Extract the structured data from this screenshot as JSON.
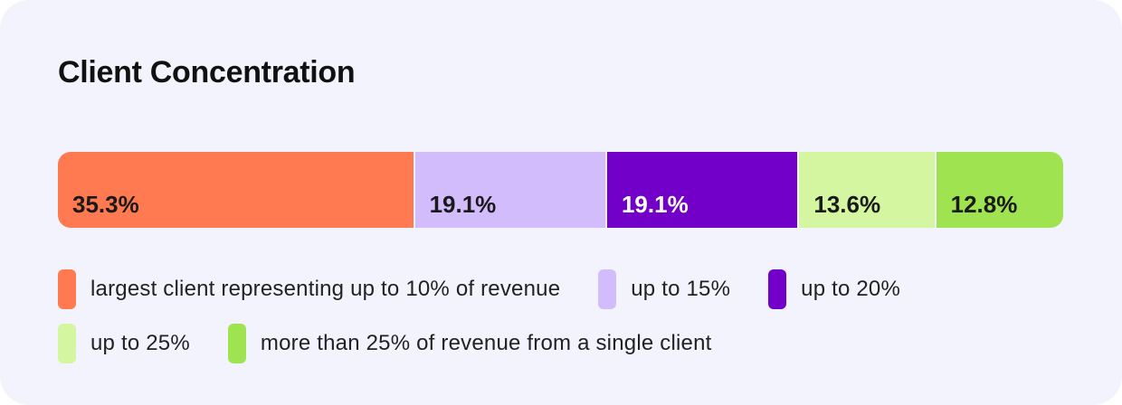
{
  "chart_data": {
    "type": "bar",
    "orientation": "horizontal-stacked-100",
    "title": "Client Concentration",
    "xlabel": "",
    "ylabel": "",
    "categories": [
      "largest client representing up to 10% of revenue",
      "up to 15%",
      "up to 20%",
      "up to 25%",
      "more than 25% of revenue from a single client"
    ],
    "values": [
      35.3,
      19.1,
      19.1,
      13.6,
      12.8
    ],
    "labels": [
      "35.3%",
      "19.1%",
      "19.1%",
      "13.6%",
      "12.8%"
    ],
    "colors": [
      "#ff7a50",
      "#d2bcfc",
      "#7200c8",
      "#d4f6a0",
      "#a0e350"
    ],
    "label_colors": [
      "#1a1a1a",
      "#1a1a1a",
      "#ffffff",
      "#1a1a1a",
      "#1a1a1a"
    ],
    "legend_position": "bottom",
    "grid": false
  }
}
